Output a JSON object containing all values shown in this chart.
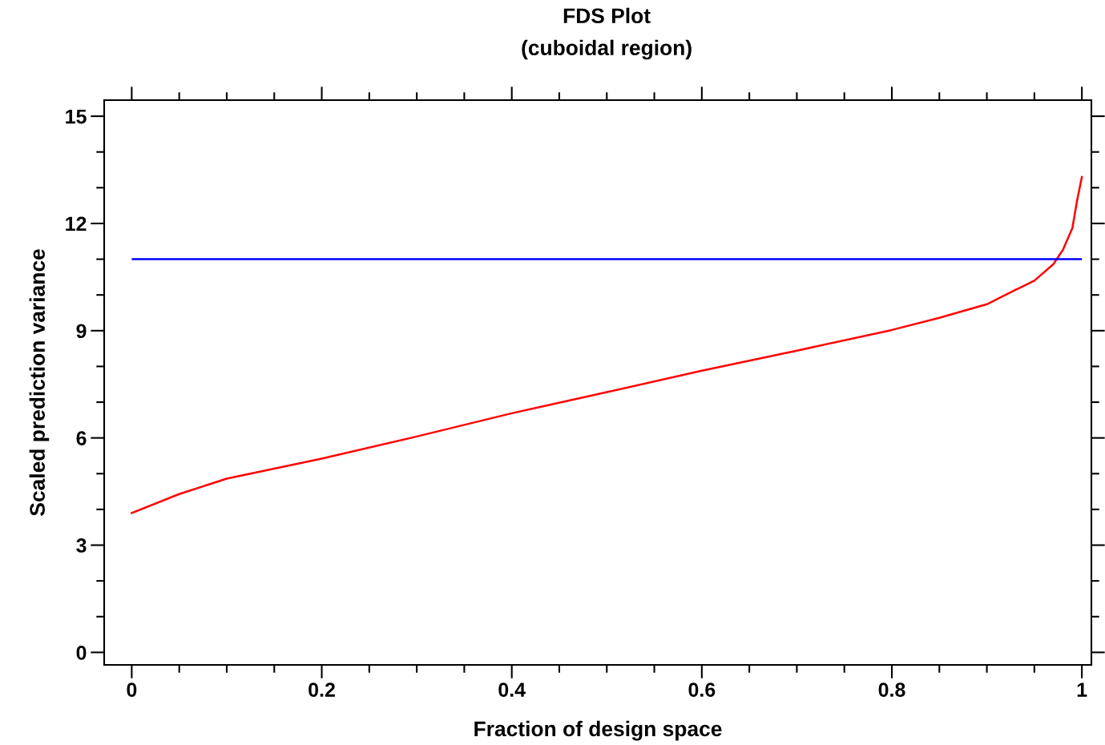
{
  "chart_data": {
    "type": "line",
    "title": "FDS Plot",
    "subtitle": "(cuboidal region)",
    "xlabel": "Fraction of design space",
    "ylabel": "Scaled prediction variance",
    "x": [
      0,
      0.05,
      0.1,
      0.2,
      0.3,
      0.4,
      0.5,
      0.6,
      0.7,
      0.8,
      0.85,
      0.9,
      0.93,
      0.95,
      0.97,
      0.98,
      0.99,
      0.995,
      1
    ],
    "series": [
      {
        "color": "#ff0000",
        "values": [
          3.9,
          4.43,
          4.86,
          5.42,
          6.04,
          6.69,
          7.28,
          7.88,
          8.44,
          9.02,
          9.36,
          9.74,
          10.14,
          10.4,
          10.86,
          11.26,
          11.87,
          12.65,
          13.3
        ]
      }
    ],
    "ref_lines": [
      {
        "axis": "y",
        "value": 11,
        "color": "#0000ff"
      }
    ],
    "xlim": [
      -0.029,
      1.01
    ],
    "ylim": [
      -0.35,
      15.45
    ],
    "xticks": [
      0,
      {
        "value": 0.05,
        "label": null
      },
      {
        "value": 0.1,
        "label": null
      },
      {
        "value": 0.15,
        "label": null
      },
      0.2,
      {
        "value": 0.25,
        "label": null
      },
      {
        "value": 0.3,
        "label": null
      },
      {
        "value": 0.35,
        "label": null
      },
      0.4,
      {
        "value": 0.45,
        "label": null
      },
      {
        "value": 0.5,
        "label": null
      },
      {
        "value": 0.55,
        "label": null
      },
      0.6,
      {
        "value": 0.65,
        "label": null
      },
      {
        "value": 0.7,
        "label": null
      },
      {
        "value": 0.75,
        "label": null
      },
      0.8,
      {
        "value": 0.85,
        "label": null
      },
      {
        "value": 0.9,
        "label": null
      },
      {
        "value": 0.95,
        "label": null
      },
      1
    ],
    "yticks": [
      0,
      {
        "value": 1,
        "label": null
      },
      {
        "value": 2,
        "label": null
      },
      3,
      {
        "value": 4,
        "label": null
      },
      {
        "value": 5,
        "label": null
      },
      6,
      {
        "value": 7,
        "label": null
      },
      {
        "value": 8,
        "label": null
      },
      9,
      {
        "value": 10,
        "label": null
      },
      {
        "value": 11,
        "label": null
      },
      12,
      {
        "value": 13,
        "label": null
      },
      {
        "value": 14,
        "label": null
      },
      15
    ],
    "grid": false,
    "legend": false
  }
}
